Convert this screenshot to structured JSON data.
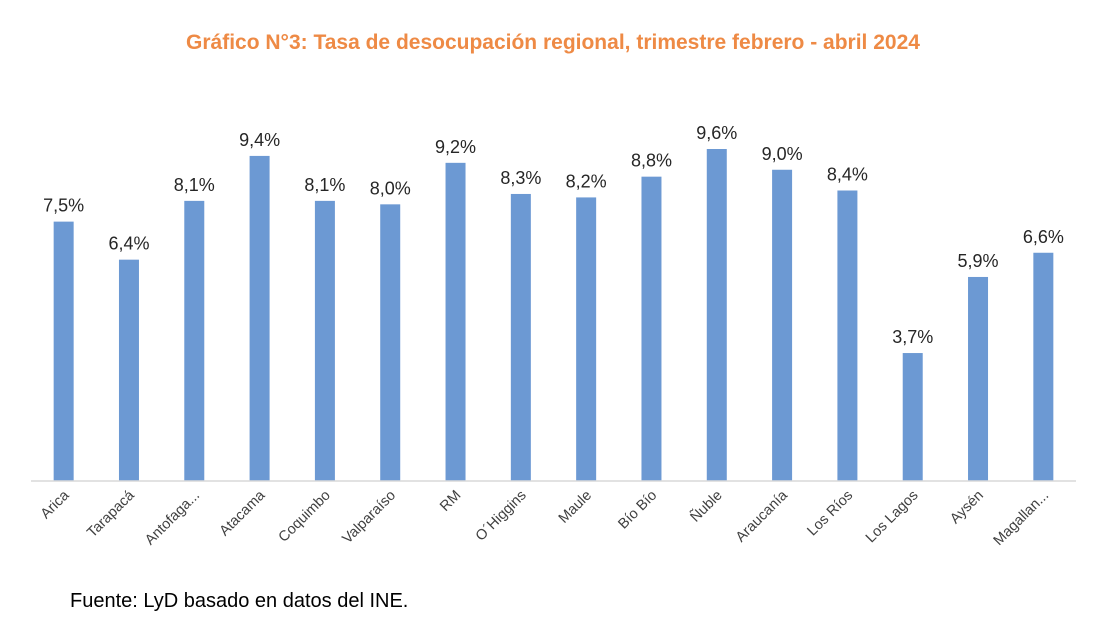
{
  "chart_data": {
    "type": "bar",
    "title": "Gráfico N°3: Tasa de desocupación regional, trimestre febrero - abril 2024",
    "categories": [
      "Arica",
      "Tarapacá",
      "Antofaga...",
      "Atacama",
      "Coquimbo",
      "Valparaíso",
      "RM",
      "O´Higgins",
      "Maule",
      "Bío Bío",
      "Ñuble",
      "Araucanía",
      "Los Ríos",
      "Los Lagos",
      "Aysén",
      "Magallan..."
    ],
    "values": [
      7.5,
      6.4,
      8.1,
      9.4,
      8.1,
      8.0,
      9.2,
      8.3,
      8.2,
      8.8,
      9.6,
      9.0,
      8.4,
      3.7,
      5.9,
      6.6
    ],
    "value_labels": [
      "7,5%",
      "6,4%",
      "8,1%",
      "9,4%",
      "8,1%",
      "8,0%",
      "9,2%",
      "8,3%",
      "8,2%",
      "8,8%",
      "9,6%",
      "9,0%",
      "8,4%",
      "3,7%",
      "5,9%",
      "6,6%"
    ],
    "xlabel": "",
    "ylabel": "",
    "ylim": [
      0,
      10
    ],
    "grid": false,
    "legend": "none",
    "bar_color": "#6c99d3",
    "title_color": "#ee8a45"
  },
  "source": "Fuente: LyD basado en datos del INE."
}
